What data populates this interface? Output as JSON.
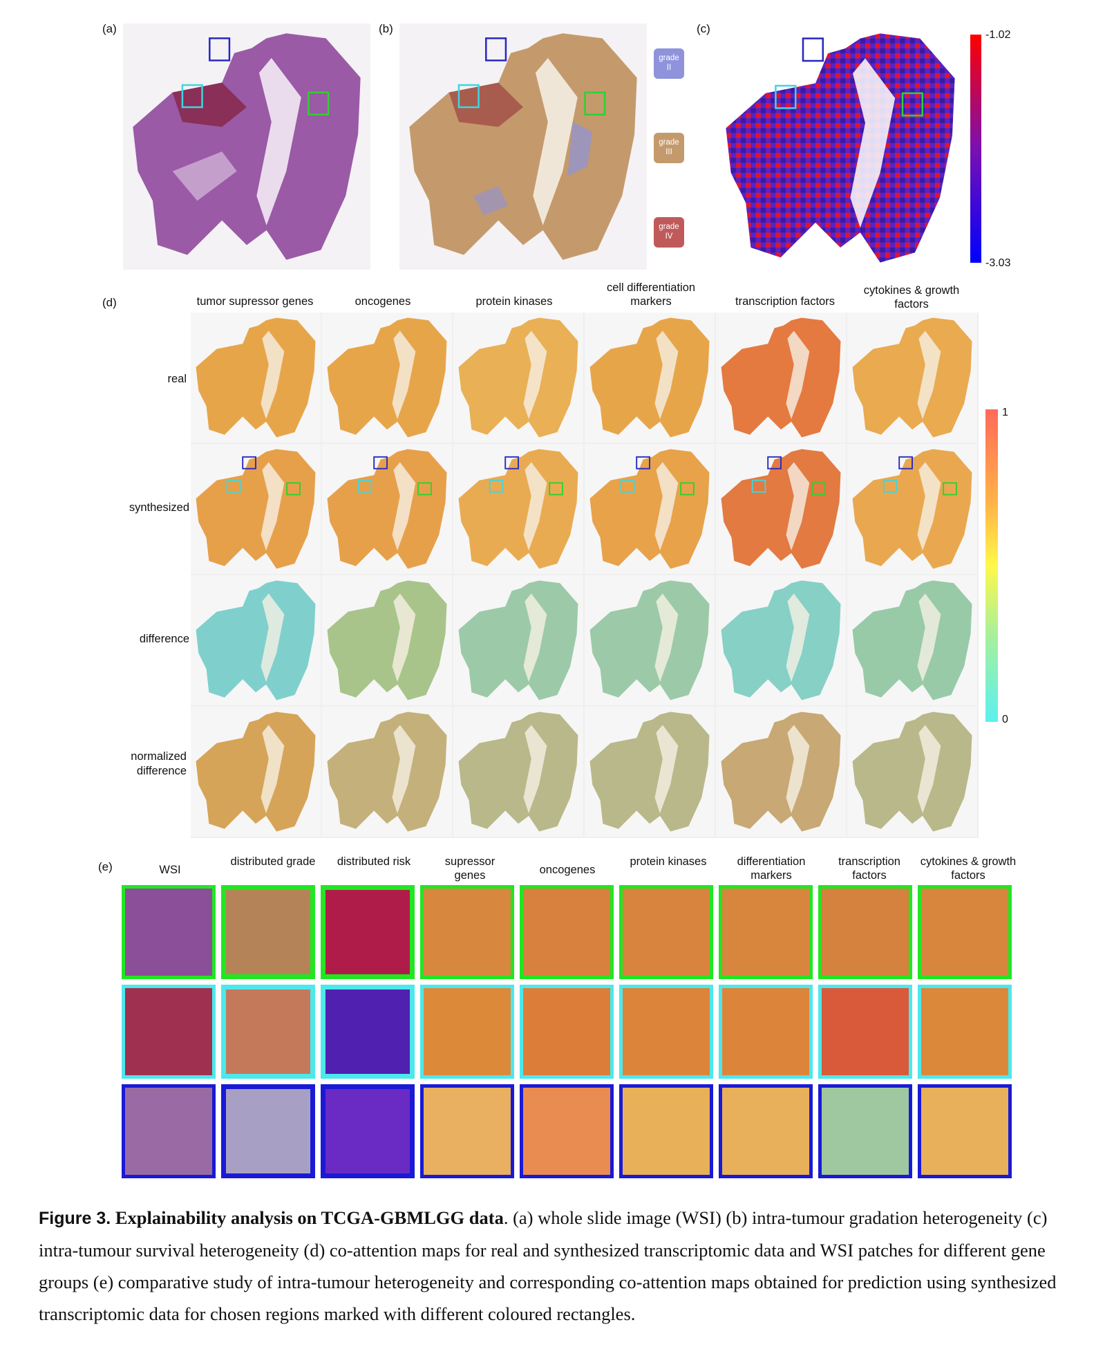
{
  "panels": {
    "a_label": "(a)",
    "b_label": "(b)",
    "c_label": "(c)",
    "d_label": "(d)",
    "e_label": "(e)"
  },
  "grade_legend": [
    {
      "line1": "grade",
      "line2": "II",
      "color": "#8f93dc"
    },
    {
      "line1": "grade",
      "line2": "III",
      "color": "#c49a6c"
    },
    {
      "line1": "grade",
      "line2": "IV",
      "color": "#c05a5a"
    }
  ],
  "risk_colorbar": {
    "top": "-1.02",
    "bottom": "-3.03",
    "top_color": "#ff0000",
    "bottom_color": "#0000ff"
  },
  "attention_colorbar": {
    "top": "1",
    "bottom": "0"
  },
  "d_columns": [
    "tumor supressor genes",
    "oncogenes",
    "protein kinases",
    "cell differentiation markers",
    "transcription factors",
    "cytokines & growth factors"
  ],
  "d_rows": [
    "real",
    "synthesized",
    "difference",
    "normalized difference"
  ],
  "e_columns": [
    "WSI",
    "distributed grade",
    "distributed risk",
    "supressor genes",
    "oncogenes",
    "protein kinases",
    "differentiation markers",
    "transcription factors",
    "cytokines & growth factors"
  ],
  "e_row_borders": [
    "#22e622",
    "#4de8ec",
    "#1a1ad6"
  ],
  "caption": {
    "figure": "Figure 3.",
    "title": "Explainability analysis on TCGA-GBMLGG data",
    "text": ". (a) whole slide image (WSI) (b) intra-tumour gradation heterogeneity (c) intra-tumour survival heterogeneity (d) co-attention maps for real and synthesized transcriptomic data and WSI patches for different gene groups (e) comparative study of intra-tumour heterogeneity and corresponding co-attention maps obtained for prediction using synthesized transcriptomic data for chosen regions marked with different coloured rectangles."
  }
}
